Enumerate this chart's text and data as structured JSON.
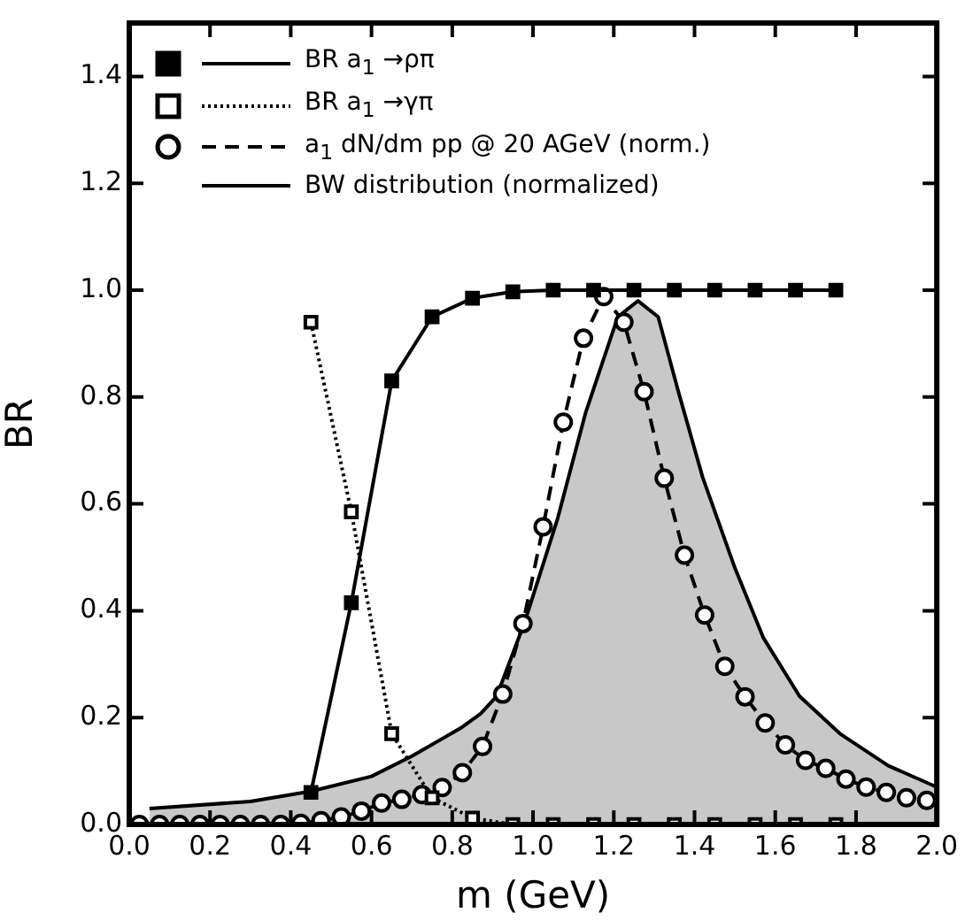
{
  "chart_data": {
    "type": "line",
    "xlabel": "m (GeV)",
    "ylabel": "BR",
    "xlim": [
      0,
      2
    ],
    "ylim": [
      0,
      1.5
    ],
    "xticks": [
      {
        "value": 0,
        "label": "0.0"
      },
      0.2,
      0.4,
      0.6,
      0.8,
      {
        "value": 1,
        "label": "1.0"
      },
      1.2,
      1.4,
      1.6,
      1.8,
      {
        "value": 2,
        "label": "2.0"
      }
    ],
    "yticks": [
      {
        "value": 0,
        "label": "0.0"
      },
      0.2,
      0.4,
      0.6,
      0.8,
      {
        "value": 1,
        "label": "1.0"
      },
      1.2,
      1.4
    ],
    "grid": false,
    "legend": "top left",
    "series": [
      {
        "name": "BR a$_{1}$ →ρπ",
        "color": "#000000",
        "marker": "square",
        "line_style": "solid",
        "x": [
          0.45,
          0.55,
          0.65,
          0.75,
          0.85,
          0.95,
          1.05,
          1.15,
          1.25,
          1.35,
          1.45,
          1.55,
          1.65,
          1.75
        ],
        "values": [
          0.06,
          0.415,
          0.83,
          0.95,
          0.985,
          0.997,
          1.0,
          1.0,
          1.0,
          1.0,
          1.0,
          1.0,
          1.0,
          1.0
        ]
      },
      {
        "name": "BR a$_{1}$ →γπ",
        "color": "#000000",
        "marker": "square_open",
        "line_style": "dotted",
        "x": [
          0.45,
          0.55,
          0.65,
          0.75,
          0.85,
          0.95,
          1.05,
          1.15,
          1.25,
          1.35,
          1.45,
          1.55,
          1.65,
          1.75
        ],
        "values": [
          0.94,
          0.585,
          0.17,
          0.05,
          0.012,
          0.0,
          0.0,
          0.0,
          0.0,
          0.0,
          0.0,
          0.0,
          0.0,
          0.0
        ]
      },
      {
        "name": "a$_{1}$ dN/dm pp @ 20 AGeV (norm.)",
        "color": "#000000",
        "marker": "circle",
        "line_style": "dashed",
        "x": [
          0.025,
          0.075,
          0.125,
          0.175,
          0.225,
          0.275,
          0.325,
          0.375,
          0.425,
          0.475,
          0.525,
          0.575,
          0.625,
          0.675,
          0.725,
          0.775,
          0.825,
          0.875,
          0.925,
          0.975,
          1.025,
          1.075,
          1.125,
          1.175,
          1.225,
          1.275,
          1.325,
          1.375,
          1.425,
          1.475,
          1.525,
          1.575,
          1.625,
          1.675,
          1.725,
          1.775,
          1.825,
          1.875,
          1.925,
          1.975
        ],
        "values": [
          0.0,
          0.0,
          0.0,
          0.0,
          0.0,
          0.0,
          0.0,
          0.0,
          0.002,
          0.007,
          0.014,
          0.025,
          0.04,
          0.047,
          0.056,
          0.069,
          0.097,
          0.146,
          0.244,
          0.376,
          0.557,
          0.753,
          0.91,
          0.988,
          0.94,
          0.81,
          0.648,
          0.504,
          0.392,
          0.296,
          0.239,
          0.19,
          0.149,
          0.12,
          0.105,
          0.085,
          0.07,
          0.06,
          0.05,
          0.045
        ]
      },
      {
        "name": "BW distribution (normalized)",
        "type": "area",
        "color": "#c8c8c8",
        "marker": "none",
        "line_style": "solid",
        "x": [
          0.05,
          0.3,
          0.45,
          0.6,
          0.7,
          0.82,
          0.87,
          0.91,
          0.98,
          1.06,
          1.13,
          1.21,
          1.26,
          1.31,
          1.36,
          1.42,
          1.5,
          1.57,
          1.66,
          1.76,
          1.88,
          2.0
        ],
        "values": [
          0.03,
          0.043,
          0.062,
          0.09,
          0.128,
          0.18,
          0.207,
          0.24,
          0.38,
          0.57,
          0.77,
          0.95,
          0.98,
          0.95,
          0.81,
          0.65,
          0.48,
          0.35,
          0.24,
          0.17,
          0.11,
          0.07
        ]
      }
    ]
  }
}
